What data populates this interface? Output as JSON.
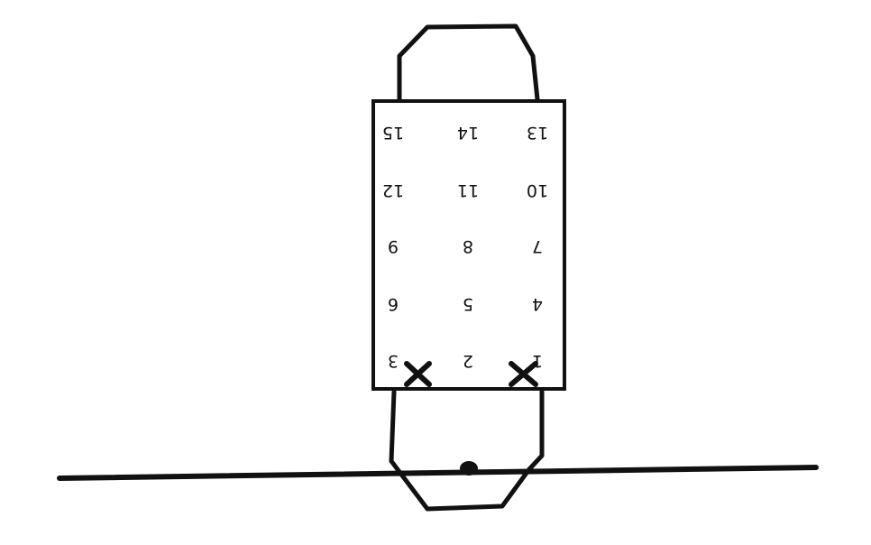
{
  "diagram": {
    "stroke_color": "#111111",
    "background": "#ffffff",
    "text_orientation": "upside-down",
    "grid_numbers": [
      [
        "13",
        "14",
        "15"
      ],
      [
        "10",
        "11",
        "12"
      ],
      [
        "7",
        "8",
        "9"
      ],
      [
        "4",
        "5",
        "6"
      ],
      [
        "1",
        "2",
        "3"
      ]
    ],
    "marked_numbers": [
      "1",
      "3"
    ],
    "markers": {
      "x_mark_count": 2,
      "dot_count": 1
    }
  }
}
